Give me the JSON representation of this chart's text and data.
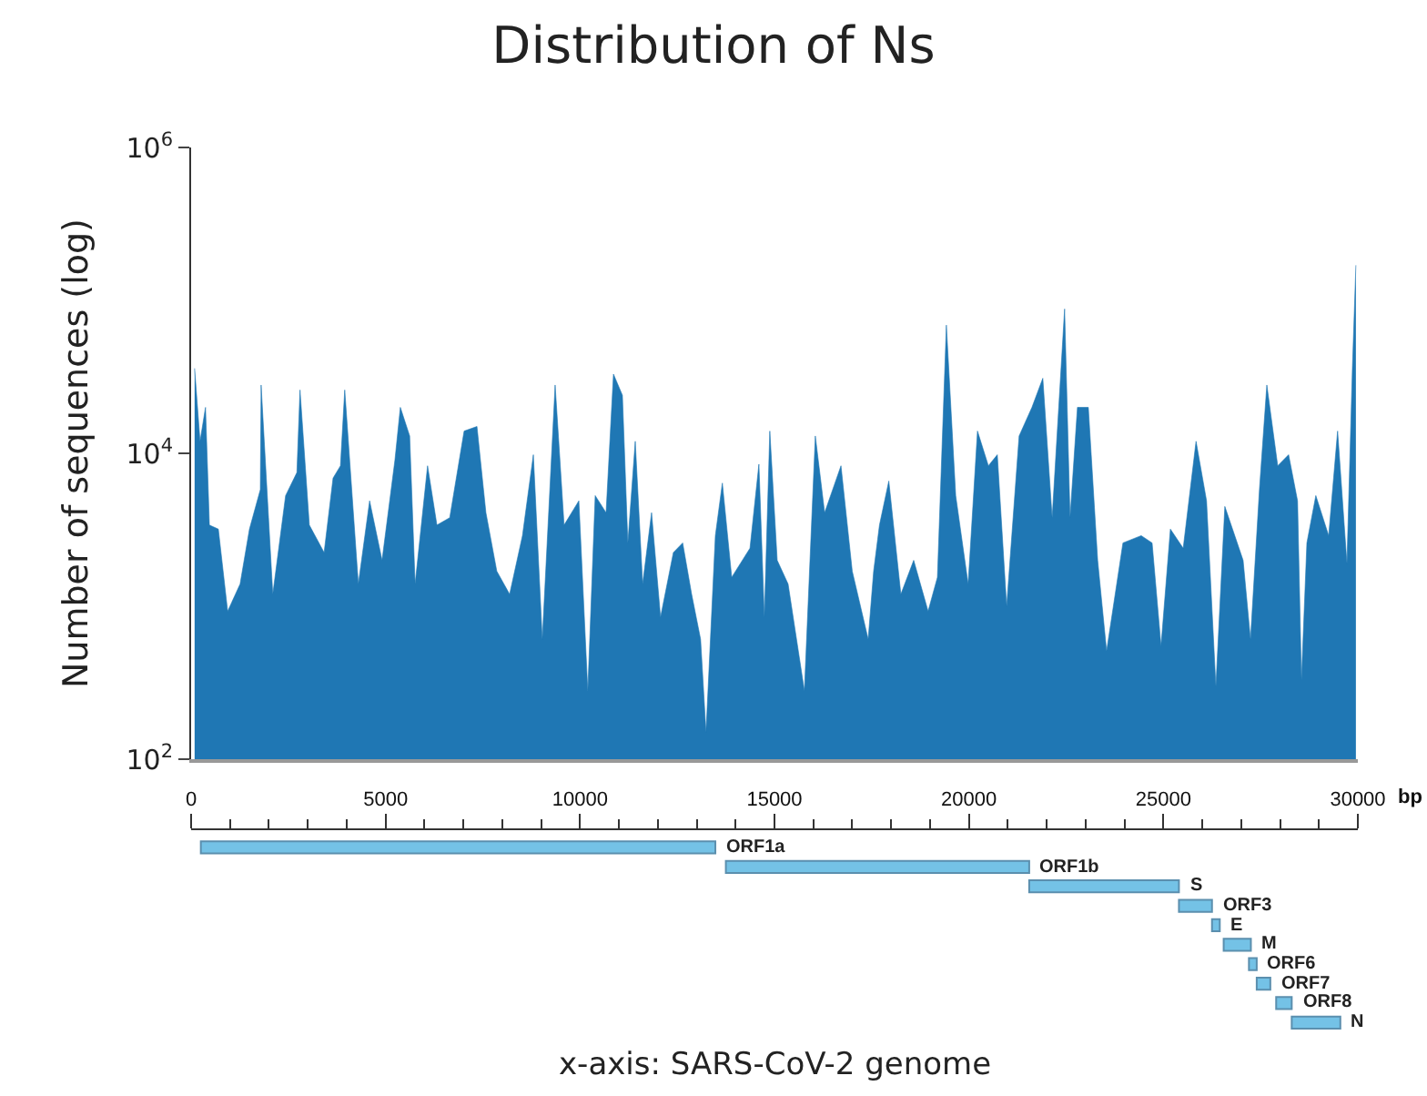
{
  "chart_data": [
    {
      "type": "area",
      "title": "Distribution of Ns",
      "ylabel": "Number of sequences (log)",
      "color": "#1f77b4",
      "log": true,
      "tick_labels": "y",
      "xlim": [
        0,
        30000
      ],
      "ylim": [
        100,
        1000000
      ],
      "yticks": [
        {
          "value": 100,
          "label": "10$^{2}$"
        },
        {
          "value": 10000,
          "label": "10$^{4}$"
        },
        {
          "value": 1000000,
          "label": "10$^{6}$"
        }
      ],
      "x": [
        90,
        230,
        370,
        470,
        700,
        940,
        1260,
        1500,
        1780,
        1800,
        2100,
        2430,
        2720,
        2800,
        3040,
        3420,
        3650,
        3840,
        3950,
        4300,
        4590,
        4910,
        5240,
        5380,
        5620,
        5760,
        6080,
        6320,
        6650,
        7020,
        7350,
        7580,
        7860,
        8190,
        8520,
        8800,
        9030,
        9360,
        9590,
        9970,
        10200,
        10390,
        10670,
        10860,
        11090,
        11230,
        11420,
        11610,
        11840,
        12070,
        12400,
        12640,
        12870,
        13100,
        13240,
        13480,
        13660,
        13900,
        14370,
        14600,
        14740,
        14880,
        15070,
        15350,
        15770,
        16050,
        16290,
        16710,
        17000,
        17410,
        17550,
        17700,
        17940,
        18250,
        18580,
        18950,
        19190,
        19420,
        19660,
        19980,
        20220,
        20500,
        20730,
        20970,
        21290,
        21620,
        21900,
        22140,
        22460,
        22600,
        22790,
        23070,
        23310,
        23540,
        23960,
        24430,
        24710,
        24940,
        25180,
        25510,
        25840,
        26110,
        26350,
        26580,
        27050,
        27240,
        27470,
        27660,
        27940,
        28220,
        28450,
        28550,
        28690,
        28920,
        29250,
        29480,
        29720,
        29860,
        29950
      ],
      "values": [
        36000,
        12000,
        20000,
        3400,
        3200,
        930,
        1400,
        3200,
        5800,
        28000,
        1200,
        5300,
        7500,
        26000,
        3400,
        2250,
        6900,
        8300,
        26000,
        1400,
        4900,
        2000,
        9000,
        20000,
        13000,
        1400,
        8300,
        3400,
        3800,
        14000,
        15000,
        4100,
        1700,
        1200,
        2900,
        9800,
        610,
        28000,
        3400,
        4900,
        280,
        5300,
        4100,
        33000,
        24000,
        2600,
        12000,
        1400,
        4100,
        850,
        2250,
        2600,
        1200,
        610,
        150,
        2900,
        6400,
        1550,
        2400,
        8500,
        850,
        14000,
        2000,
        1400,
        280,
        13000,
        4100,
        8300,
        1700,
        610,
        1700,
        3400,
        6600,
        1200,
        2000,
        930,
        1550,
        69000,
        5300,
        1400,
        14000,
        8300,
        9800,
        1000,
        13000,
        20000,
        31000,
        3800,
        88000,
        3800,
        20000,
        20000,
        2000,
        510,
        2600,
        2900,
        2600,
        550,
        3200,
        2400,
        12000,
        4900,
        300,
        4500,
        2000,
        610,
        5800,
        28000,
        8300,
        9800,
        4900,
        330,
        2600,
        5300,
        2900,
        14000,
        1900,
        36000,
        170000
      ]
    },
    {
      "type": "bar",
      "orientation": "horizontal",
      "xlabel": "bp",
      "tick_labels": "x",
      "categories": [
        "ORF1a",
        "ORF1b",
        "S",
        "ORF3",
        "E",
        "M",
        "ORF6",
        "ORF7",
        "ORF8",
        "N"
      ],
      "color": "#74c2e6",
      "base": [
        250,
        13750,
        21550,
        25400,
        26250,
        26550,
        27200,
        27400,
        27900,
        28300
      ],
      "values": [
        13230,
        7800,
        3850,
        850,
        200,
        700,
        200,
        350,
        400,
        1250
      ],
      "xlim": [
        0,
        30000
      ],
      "xticks": [
        0,
        {
          "value": 1000,
          "label": null
        },
        {
          "value": 2000,
          "label": null
        },
        {
          "value": 3000,
          "label": null
        },
        {
          "value": 4000,
          "label": null
        },
        5000,
        {
          "value": 6000,
          "label": null
        },
        {
          "value": 7000,
          "label": null
        },
        {
          "value": 8000,
          "label": null
        },
        {
          "value": 9000,
          "label": null
        },
        10000,
        {
          "value": 11000,
          "label": null
        },
        {
          "value": 12000,
          "label": null
        },
        {
          "value": 13000,
          "label": null
        },
        {
          "value": 14000,
          "label": null
        },
        15000,
        {
          "value": 16000,
          "label": null
        },
        {
          "value": 17000,
          "label": null
        },
        {
          "value": 18000,
          "label": null
        },
        {
          "value": 19000,
          "label": null
        },
        20000,
        {
          "value": 21000,
          "label": null
        },
        {
          "value": 22000,
          "label": null
        },
        {
          "value": 23000,
          "label": null
        },
        {
          "value": 24000,
          "label": null
        },
        25000,
        {
          "value": 26000,
          "label": null
        },
        {
          "value": 27000,
          "label": null
        },
        {
          "value": 28000,
          "label": null
        },
        {
          "value": 29000,
          "label": null
        },
        30000
      ],
      "annotations": [
        "x-axis: SARS-CoV-2 genome"
      ]
    }
  ]
}
